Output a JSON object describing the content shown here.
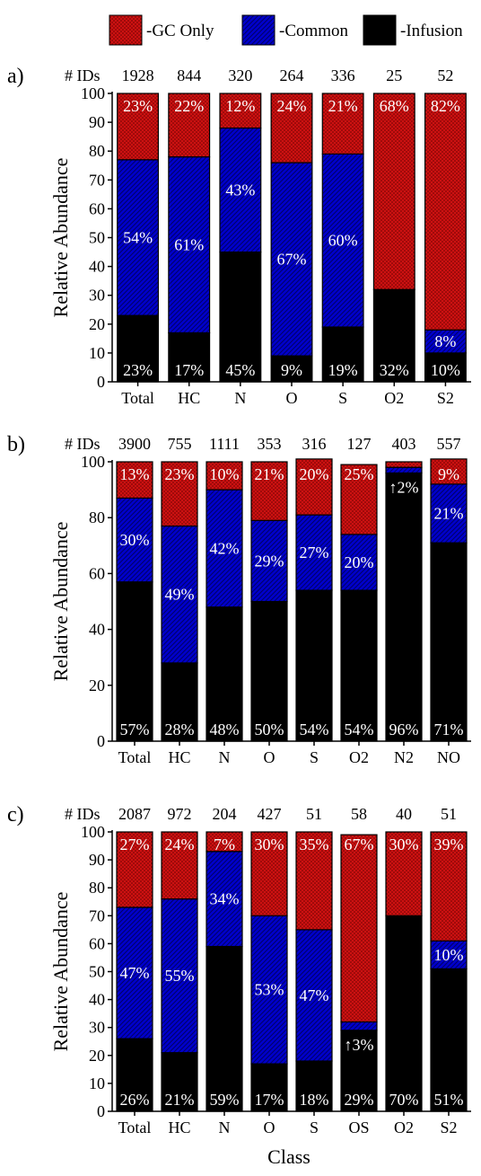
{
  "legend": [
    {
      "label": "-GC Only",
      "color": "#cc1111",
      "pattern": "dots"
    },
    {
      "label": "-Common",
      "color": "#0000cc",
      "pattern": "hatch"
    },
    {
      "label": "-Infusion",
      "color": "#000000",
      "pattern": "solid"
    }
  ],
  "xlabel": "Class",
  "chart_data": [
    {
      "type": "bar",
      "stacked": true,
      "panel": "a)",
      "ids_label": "# IDs",
      "ylabel": "Relative Abundance",
      "ylim": [
        0,
        100
      ],
      "yticks": [
        "0",
        "10",
        "20",
        "30",
        "40",
        "50",
        "60",
        "70",
        "80",
        "90",
        "100"
      ],
      "categories": [
        "Total",
        "HC",
        "N",
        "O",
        "S",
        "O2",
        "S2"
      ],
      "ids": [
        "1928",
        "844",
        "320",
        "264",
        "336",
        "25",
        "52"
      ],
      "series": [
        {
          "name": "-Infusion",
          "values": [
            23,
            17,
            45,
            9,
            19,
            32,
            10
          ]
        },
        {
          "name": "-Common",
          "values": [
            54,
            61,
            43,
            67,
            60,
            0,
            8
          ]
        },
        {
          "name": "-GC Only",
          "values": [
            23,
            22,
            12,
            24,
            21,
            68,
            82
          ]
        }
      ],
      "labels": {
        "infusion": [
          "23%",
          "17%",
          "45%",
          "9%",
          "19%",
          "32%",
          "10%"
        ],
        "common": [
          "54%",
          "61%",
          "43%",
          "67%",
          "60%",
          "",
          "8%"
        ],
        "gc": [
          "23%",
          "22%",
          "12%",
          "24%",
          "21%",
          "68%",
          "82%"
        ]
      }
    },
    {
      "type": "bar",
      "stacked": true,
      "panel": "b)",
      "ids_label": "# IDs",
      "ylabel": "Relative Abundance",
      "ylim": [
        0,
        100
      ],
      "yticks": [
        "0",
        "20",
        "40",
        "60",
        "80",
        "100"
      ],
      "categories": [
        "Total",
        "HC",
        "N",
        "O",
        "S",
        "O2",
        "N2",
        "NO"
      ],
      "ids": [
        "3900",
        "755",
        "1111",
        "353",
        "316",
        "127",
        "403",
        "557"
      ],
      "series": [
        {
          "name": "-Infusion",
          "values": [
            57,
            28,
            48,
            50,
            54,
            54,
            96,
            71
          ]
        },
        {
          "name": "-Common",
          "values": [
            30,
            49,
            42,
            29,
            27,
            20,
            2,
            21
          ]
        },
        {
          "name": "-GC Only",
          "values": [
            13,
            23,
            10,
            21,
            20,
            25,
            2,
            9
          ]
        }
      ],
      "labels": {
        "infusion": [
          "57%",
          "28%",
          "48%",
          "50%",
          "54%",
          "54%",
          "96%",
          "71%"
        ],
        "common": [
          "30%",
          "49%",
          "42%",
          "29%",
          "27%",
          "20%",
          "↑2%",
          "21%"
        ],
        "gc": [
          "13%",
          "23%",
          "10%",
          "21%",
          "20%",
          "25%",
          "",
          "9%"
        ]
      }
    },
    {
      "type": "bar",
      "stacked": true,
      "panel": "c)",
      "ids_label": "# IDs",
      "ylabel": "Relative Abundance",
      "ylim": [
        0,
        100
      ],
      "yticks": [
        "0",
        "10",
        "20",
        "30",
        "40",
        "50",
        "60",
        "70",
        "80",
        "90",
        "100"
      ],
      "categories": [
        "Total",
        "HC",
        "N",
        "O",
        "S",
        "OS",
        "O2",
        "S2"
      ],
      "ids": [
        "2087",
        "972",
        "204",
        "427",
        "51",
        "58",
        "40",
        "51"
      ],
      "series": [
        {
          "name": "-Infusion",
          "values": [
            26,
            21,
            59,
            17,
            18,
            29,
            70,
            51
          ]
        },
        {
          "name": "-Common",
          "values": [
            47,
            55,
            34,
            53,
            47,
            3,
            0,
            10
          ]
        },
        {
          "name": "-GC Only",
          "values": [
            27,
            24,
            7,
            30,
            35,
            67,
            30,
            39
          ]
        }
      ],
      "labels": {
        "infusion": [
          "26%",
          "21%",
          "59%",
          "17%",
          "18%",
          "29%",
          "70%",
          "51%"
        ],
        "common": [
          "47%",
          "55%",
          "34%",
          "53%",
          "47%",
          "↑3%",
          "",
          "10%"
        ],
        "gc": [
          "27%",
          "24%",
          "7%",
          "30%",
          "35%",
          "67%",
          "30%",
          "39%"
        ]
      }
    }
  ]
}
